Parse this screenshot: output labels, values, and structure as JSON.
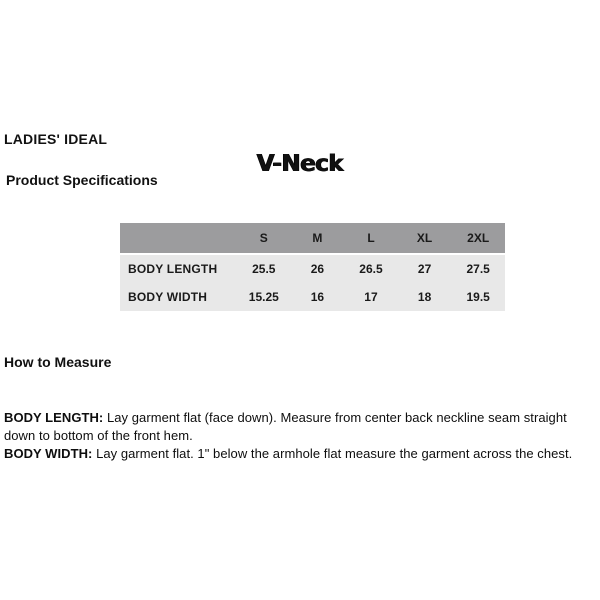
{
  "page": {
    "background_color": "#ffffff",
    "text_color": "#111111"
  },
  "header": {
    "brand": "LADIES' IDEAL",
    "section_title": "Product Specifications",
    "product_name": "V-Neck"
  },
  "spec_table": {
    "header_bg_color": "#9c9c9e",
    "body_bg_color": "#e8e8e8",
    "columns": [
      "",
      "S",
      "M",
      "L",
      "XL",
      "2XL"
    ],
    "rows": [
      {
        "label": "BODY LENGTH",
        "values": [
          "25.5",
          "26",
          "26.5",
          "27",
          "27.5"
        ]
      },
      {
        "label": "BODY WIDTH",
        "values": [
          "15.25",
          "16",
          "17",
          "18",
          "19.5"
        ]
      }
    ]
  },
  "how_to_measure": {
    "heading": "How to Measure",
    "instructions": [
      {
        "term": "BODY LENGTH:",
        "text": "Lay garment flat (face down). Measure from center back neckline seam straight down to bottom of the front hem."
      },
      {
        "term": "BODY WIDTH:",
        "text": "Lay garment flat. 1\" below the armhole flat measure the garment across the chest."
      }
    ]
  }
}
